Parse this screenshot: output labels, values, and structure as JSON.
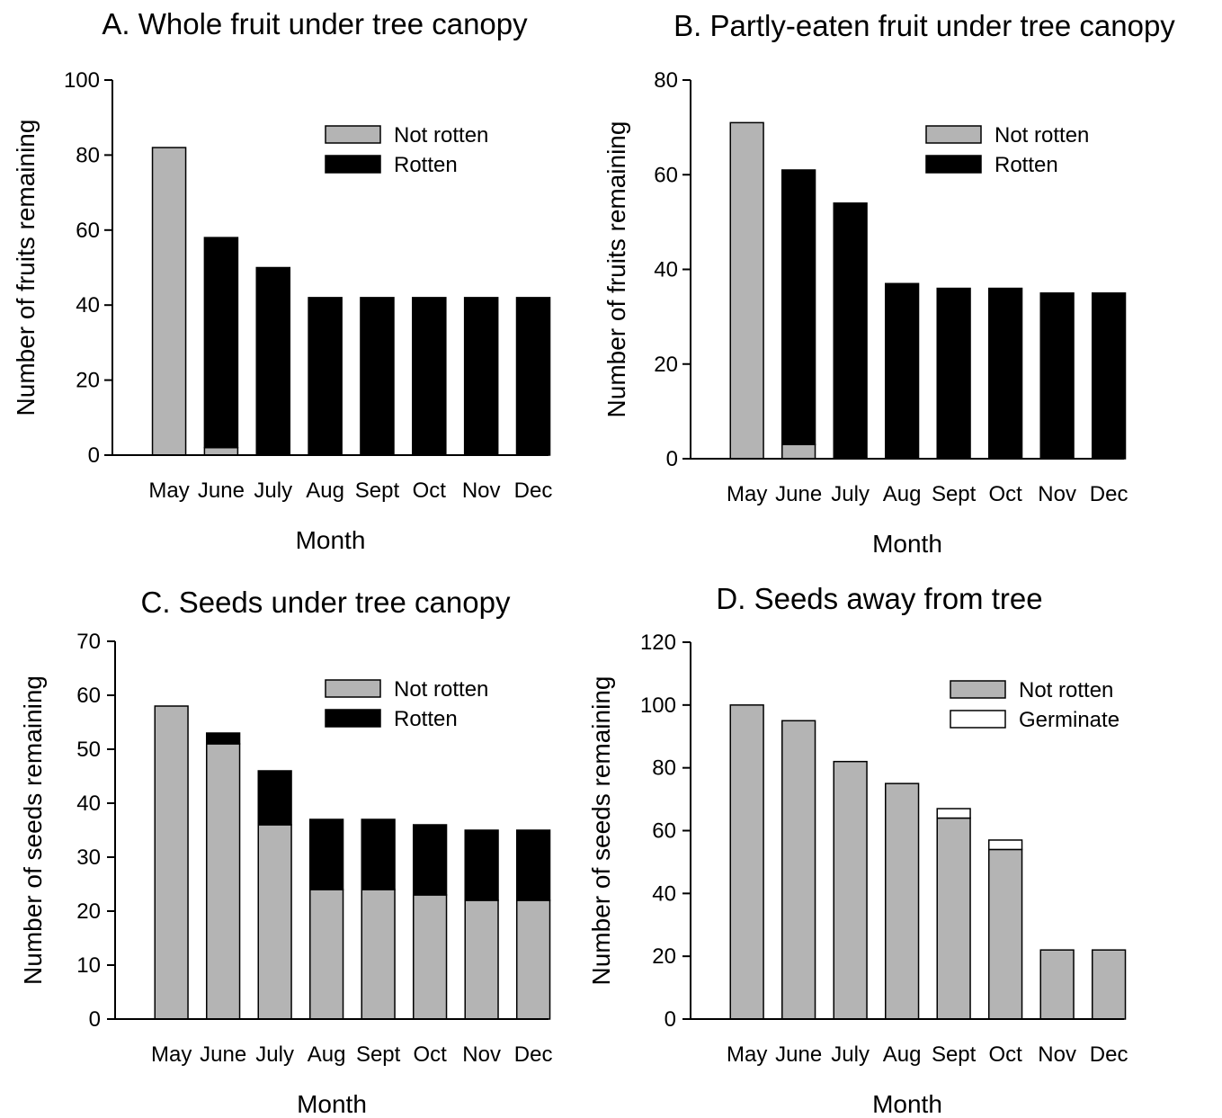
{
  "figure": {
    "categories": [
      "May",
      "June",
      "July",
      "Aug",
      "Sept",
      "Oct",
      "Nov",
      "Dec"
    ]
  },
  "colors": {
    "not_rotten": "#b4b4b4",
    "rotten": "#000000",
    "germinate": "#ffffff",
    "outline": "#000000"
  },
  "chart_data": [
    {
      "type": "bar",
      "stacked": true,
      "title": "A. Whole fruit under tree canopy",
      "xlabel": "Month",
      "ylabel": "Number of fruits remaining",
      "ylim": [
        0,
        100
      ],
      "yticks": [
        0,
        20,
        40,
        60,
        80,
        100
      ],
      "grid": false,
      "legend_position": "top-right",
      "categories": [
        "May",
        "June",
        "July",
        "Aug",
        "Sept",
        "Oct",
        "Nov",
        "Dec"
      ],
      "series": [
        {
          "name": "Not rotten",
          "color": "#b4b4b4",
          "values": [
            82,
            2,
            0,
            0,
            0,
            0,
            0,
            0
          ]
        },
        {
          "name": "Rotten",
          "color": "#000000",
          "values": [
            0,
            56,
            50,
            42,
            42,
            42,
            42,
            42
          ]
        }
      ]
    },
    {
      "type": "bar",
      "stacked": true,
      "title": "B. Partly-eaten fruit under tree canopy",
      "xlabel": "Month",
      "ylabel": "Number of fruits remaining",
      "ylim": [
        0,
        80
      ],
      "yticks": [
        0,
        20,
        40,
        60,
        80
      ],
      "grid": false,
      "legend_position": "top-right",
      "categories": [
        "May",
        "June",
        "July",
        "Aug",
        "Sept",
        "Oct",
        "Nov",
        "Dec"
      ],
      "series": [
        {
          "name": "Not rotten",
          "color": "#b4b4b4",
          "values": [
            71,
            3,
            0,
            0,
            0,
            0,
            0,
            0
          ]
        },
        {
          "name": "Rotten",
          "color": "#000000",
          "values": [
            0,
            58,
            54,
            37,
            36,
            36,
            35,
            35
          ]
        }
      ]
    },
    {
      "type": "bar",
      "stacked": true,
      "title": "C. Seeds under tree canopy",
      "xlabel": "Month",
      "ylabel": "Number of seeds remaining",
      "ylim": [
        0,
        70
      ],
      "yticks": [
        0,
        10,
        20,
        30,
        40,
        50,
        60,
        70
      ],
      "grid": false,
      "legend_position": "top-right",
      "categories": [
        "May",
        "June",
        "July",
        "Aug",
        "Sept",
        "Oct",
        "Nov",
        "Dec"
      ],
      "series": [
        {
          "name": "Not rotten",
          "color": "#b4b4b4",
          "values": [
            58,
            51,
            36,
            24,
            24,
            23,
            22,
            22
          ]
        },
        {
          "name": "Rotten",
          "color": "#000000",
          "values": [
            0,
            2,
            10,
            13,
            13,
            13,
            13,
            13
          ]
        }
      ]
    },
    {
      "type": "bar",
      "stacked": true,
      "title": "D. Seeds away from tree",
      "xlabel": "Month",
      "ylabel": "Number of seeds remaining",
      "ylim": [
        0,
        120
      ],
      "yticks": [
        0,
        20,
        40,
        60,
        80,
        100,
        120
      ],
      "grid": false,
      "legend_position": "top-right",
      "categories": [
        "May",
        "June",
        "July",
        "Aug",
        "Sept",
        "Oct",
        "Nov",
        "Dec"
      ],
      "series": [
        {
          "name": "Not rotten",
          "color": "#b4b4b4",
          "values": [
            100,
            95,
            82,
            75,
            64,
            54,
            22,
            22
          ]
        },
        {
          "name": "Germinate",
          "color": "#ffffff",
          "values": [
            0,
            0,
            0,
            0,
            3,
            3,
            0,
            0
          ]
        }
      ]
    }
  ]
}
